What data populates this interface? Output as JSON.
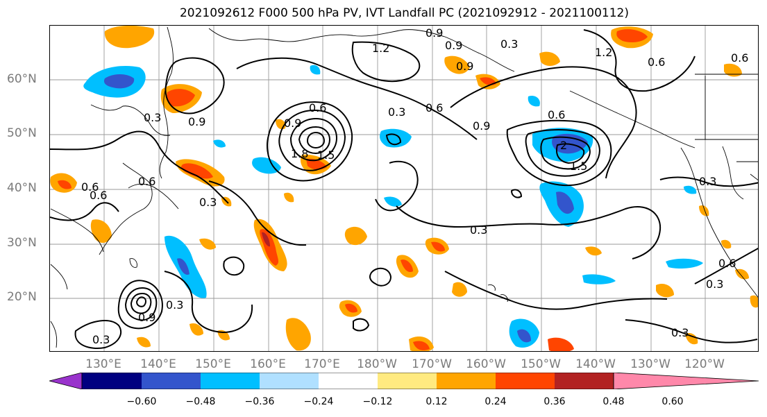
{
  "title": "2021092612 F000 500 hPa PV, IVT Landfall PC (2021092912 - 2021100112)",
  "lat_labels": [
    "60°N",
    "50°N",
    "40°N",
    "30°N",
    "20°N"
  ],
  "lon_labels": [
    "130°E",
    "140°E",
    "150°E",
    "160°E",
    "170°E",
    "180°W",
    "170°W",
    "160°W",
    "150°W",
    "140°W",
    "130°W",
    "120°W"
  ],
  "contour_labels": [
    "1.2",
    "0.9",
    "0.3",
    "0.6",
    "0.9",
    "0.3",
    "0.6",
    "0.9",
    "1.2",
    "0.6",
    "0.6",
    "0.9",
    "0.3",
    "0.9",
    "0.3",
    "0.6",
    "0.3",
    "0.3",
    "0.9",
    "0.6",
    "0.3",
    "0.6",
    "0.3",
    "0.3",
    "0.3",
    "0.6",
    "0.9",
    "1.8",
    "1.5",
    "2",
    "1.5",
    "0.6"
  ],
  "colorbar": {
    "ticks": [
      "−0.60",
      "−0.48",
      "−0.36",
      "−0.24",
      "−0.12",
      "0.12",
      "0.24",
      "0.36",
      "0.48",
      "0.60"
    ],
    "colors": [
      "#9933cc",
      "#000080",
      "#3355cc",
      "#00bfff",
      "#b0e0ff",
      "#ffffff",
      "#ffea80",
      "#ffa500",
      "#ff4500",
      "#b22222",
      "#ff88aa"
    ]
  }
}
